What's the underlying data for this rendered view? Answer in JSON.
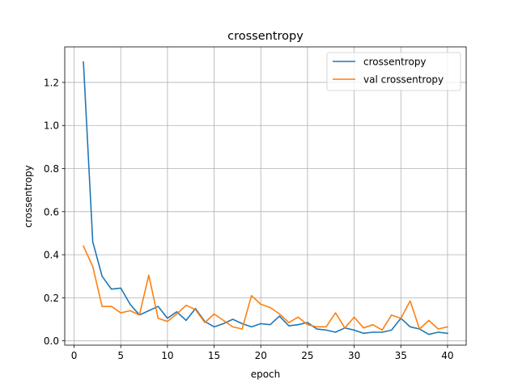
{
  "chart_data": {
    "type": "line",
    "title": "crossentropy",
    "xlabel": "epoch",
    "ylabel": "crossentropy",
    "xlim": [
      -1,
      42
    ],
    "ylim": [
      -0.02,
      1.365
    ],
    "xticks": [
      0,
      5,
      10,
      15,
      20,
      25,
      30,
      35,
      40
    ],
    "yticks": [
      0.0,
      0.2,
      0.4,
      0.6,
      0.8,
      1.0,
      1.2
    ],
    "ytick_labels": [
      "0.0",
      "0.2",
      "0.4",
      "0.6",
      "0.8",
      "1.0",
      "1.2"
    ],
    "grid": true,
    "legend_position": "top-right",
    "x": [
      1,
      2,
      3,
      4,
      5,
      6,
      7,
      8,
      9,
      10,
      11,
      12,
      13,
      14,
      15,
      16,
      17,
      18,
      19,
      20,
      21,
      22,
      23,
      24,
      25,
      26,
      27,
      28,
      29,
      30,
      31,
      32,
      33,
      34,
      35,
      36,
      37,
      38,
      39,
      40
    ],
    "series": [
      {
        "name": "crossentropy",
        "color": "#1f77b4",
        "values": [
          1.295,
          0.46,
          0.3,
          0.24,
          0.245,
          0.17,
          0.12,
          0.14,
          0.16,
          0.105,
          0.135,
          0.095,
          0.15,
          0.09,
          0.065,
          0.08,
          0.1,
          0.08,
          0.065,
          0.08,
          0.075,
          0.115,
          0.07,
          0.075,
          0.085,
          0.055,
          0.05,
          0.04,
          0.06,
          0.05,
          0.035,
          0.04,
          0.04,
          0.05,
          0.105,
          0.065,
          0.055,
          0.03,
          0.04,
          0.035
        ]
      },
      {
        "name": "val crossentropy",
        "color": "#ff7f0e",
        "values": [
          0.44,
          0.345,
          0.16,
          0.16,
          0.13,
          0.14,
          0.12,
          0.305,
          0.105,
          0.09,
          0.125,
          0.165,
          0.145,
          0.085,
          0.125,
          0.095,
          0.065,
          0.055,
          0.21,
          0.17,
          0.155,
          0.125,
          0.085,
          0.11,
          0.075,
          0.065,
          0.065,
          0.13,
          0.06,
          0.11,
          0.06,
          0.075,
          0.05,
          0.12,
          0.105,
          0.185,
          0.055,
          0.095,
          0.055,
          0.065
        ]
      }
    ]
  }
}
